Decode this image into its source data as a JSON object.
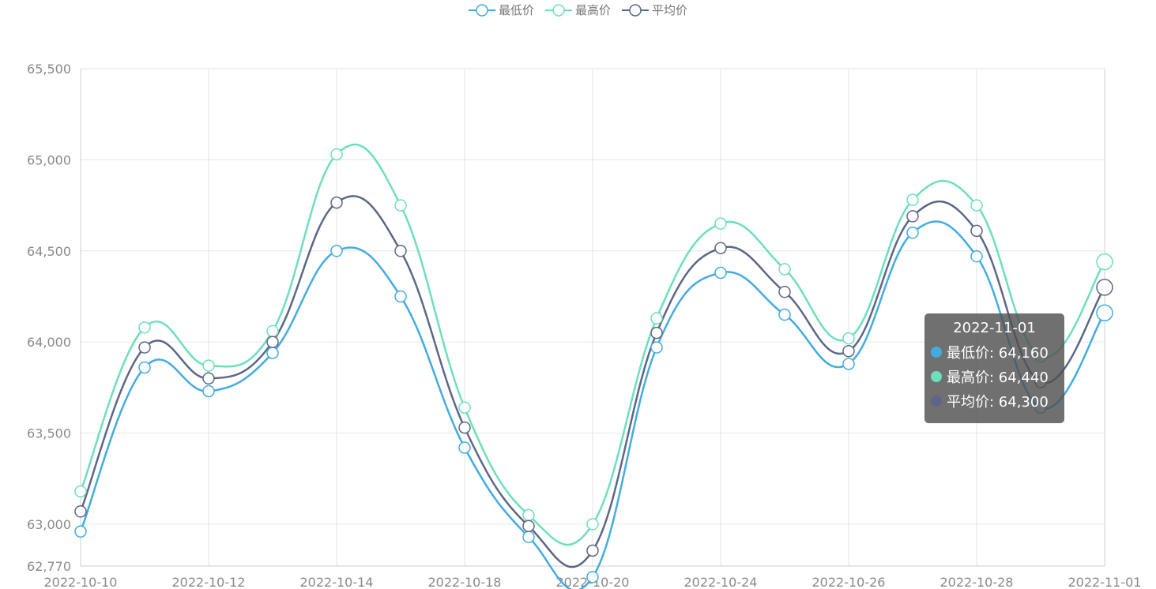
{
  "chart_data": {
    "type": "line",
    "categories": [
      "2022-10-10",
      "2022-10-11",
      "2022-10-12",
      "2022-10-13",
      "2022-10-14",
      "2022-10-15",
      "2022-10-18",
      "2022-10-19",
      "2022-10-20",
      "2022-10-21",
      "2022-10-24",
      "2022-10-25",
      "2022-10-26",
      "2022-10-27",
      "2022-10-28",
      "2022-10-31",
      "2022-11-01"
    ],
    "xtick_labels": [
      "2022-10-10",
      "2022-10-12",
      "2022-10-14",
      "2022-10-18",
      "2022-10-20",
      "2022-10-24",
      "2022-10-26",
      "2022-10-28",
      "2022-11-01"
    ],
    "series": [
      {
        "name": "最低价",
        "color": "#42ace0",
        "values": [
          62960,
          63860,
          63730,
          63940,
          64500,
          64250,
          63420,
          62930,
          62710,
          63970,
          64380,
          64150,
          63880,
          64600,
          64470,
          63640,
          64160
        ]
      },
      {
        "name": "最高价",
        "color": "#6ddfbd",
        "values": [
          63180,
          64080,
          63870,
          64060,
          65030,
          64750,
          63640,
          63050,
          63000,
          64130,
          64650,
          64400,
          64020,
          64780,
          64750,
          63920,
          64440
        ]
      },
      {
        "name": "平均价",
        "color": "#5e6687",
        "values": [
          63070,
          63970,
          63800,
          64000,
          64765,
          64500,
          63530,
          62990,
          62855,
          64050,
          64515,
          64275,
          63950,
          64690,
          64610,
          63780,
          64300
        ]
      }
    ],
    "ylim": [
      62770,
      65500
    ],
    "yticks": [
      "65,500",
      "65,000",
      "64,500",
      "64,000",
      "63,500",
      "63,000",
      "62,770"
    ],
    "grid": true,
    "legend_position": "top-center"
  },
  "tooltip": {
    "title": "2022-11-01",
    "rows": [
      {
        "label": "最低价: 64,160",
        "color": "#42ace0"
      },
      {
        "label": "最高价: 64,440",
        "color": "#6ddfbd"
      },
      {
        "label": "平均价: 64,300",
        "color": "#5e6687"
      }
    ]
  }
}
